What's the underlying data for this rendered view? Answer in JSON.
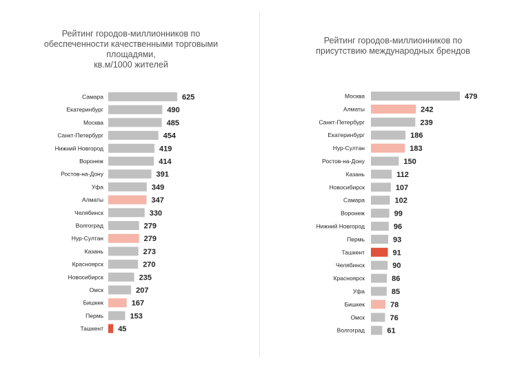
{
  "colors": {
    "bar": "#c0c0c0",
    "highlight_light": "#f5b5a8",
    "highlight_dark": "#e0533a"
  },
  "chart_data": [
    {
      "type": "bar",
      "orientation": "horizontal",
      "title": "Рейтинг городов-миллионников по\nобеспеченности качественными торговыми\nплощадями,\nкв.м/1000 жителей",
      "categories": [
        "Самара",
        "Екатеринбург",
        "Москва",
        "Санкт-Петербург",
        "Нижний Новгород",
        "Воронеж",
        "Ростов-на-Дону",
        "Уфа",
        "Алматы",
        "Челябинск",
        "Волгоград",
        "Нур-Султан",
        "Казань",
        "Красноярск",
        "Новосибирск",
        "Омск",
        "Бишкек",
        "Пермь",
        "Ташкент"
      ],
      "values": [
        625,
        490,
        485,
        454,
        419,
        414,
        391,
        349,
        347,
        330,
        279,
        279,
        273,
        270,
        235,
        207,
        167,
        153,
        45
      ],
      "highlight": [
        "",
        "",
        "",
        "",
        "",
        "",
        "",
        "",
        "light",
        "",
        "",
        "light",
        "",
        "",
        "",
        "",
        "light",
        "",
        "dark"
      ],
      "xlim": [
        0,
        625
      ]
    },
    {
      "type": "bar",
      "orientation": "horizontal",
      "title": "Рейтинг городов-миллионников по\nприсутствию международных брендов",
      "categories": [
        "Москва",
        "Алматы",
        "Санкт-Петербург",
        "Екатеринбург",
        "Нур-Султан",
        "Ростов-на-Дону",
        "Казань",
        "Новосибирск",
        "Самара",
        "Воронеж",
        "Нижний Новгород",
        "Пермь",
        "Ташкент",
        "Челябинск",
        "Красноярск",
        "Уфа",
        "Бишкек",
        "Омск",
        "Волгоград"
      ],
      "values": [
        479,
        242,
        239,
        186,
        183,
        150,
        112,
        107,
        102,
        99,
        96,
        93,
        91,
        90,
        86,
        85,
        78,
        76,
        61
      ],
      "highlight": [
        "",
        "light",
        "",
        "",
        "light",
        "",
        "",
        "",
        "",
        "",
        "",
        "",
        "dark",
        "",
        "",
        "",
        "light",
        "",
        ""
      ],
      "xlim": [
        0,
        479
      ]
    }
  ]
}
